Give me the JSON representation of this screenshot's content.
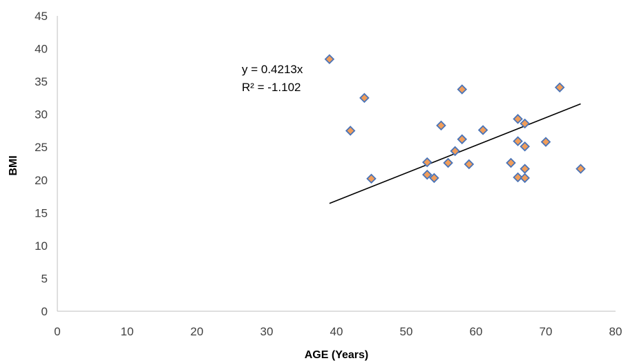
{
  "chart_data": {
    "type": "scatter",
    "xlabel": "AGE (Years)",
    "ylabel": "BMI",
    "xlim": [
      0,
      80
    ],
    "ylim": [
      0,
      45
    ],
    "x_ticks": [
      0,
      10,
      20,
      30,
      40,
      50,
      60,
      70,
      80
    ],
    "y_ticks": [
      0,
      5,
      10,
      15,
      20,
      25,
      30,
      35,
      40,
      45
    ],
    "grid": false,
    "legend": "none",
    "points": [
      {
        "x": 39,
        "y": 38.4
      },
      {
        "x": 42,
        "y": 27.5
      },
      {
        "x": 44,
        "y": 32.5
      },
      {
        "x": 45,
        "y": 20.2
      },
      {
        "x": 53,
        "y": 22.7
      },
      {
        "x": 53,
        "y": 20.8
      },
      {
        "x": 54,
        "y": 20.3
      },
      {
        "x": 55,
        "y": 28.3
      },
      {
        "x": 56,
        "y": 22.6
      },
      {
        "x": 57,
        "y": 24.4
      },
      {
        "x": 58,
        "y": 33.8
      },
      {
        "x": 58,
        "y": 26.2
      },
      {
        "x": 59,
        "y": 22.4
      },
      {
        "x": 61,
        "y": 27.6
      },
      {
        "x": 65,
        "y": 22.6
      },
      {
        "x": 66,
        "y": 29.3
      },
      {
        "x": 66,
        "y": 25.9
      },
      {
        "x": 66,
        "y": 20.4
      },
      {
        "x": 67,
        "y": 28.6
      },
      {
        "x": 67,
        "y": 25.1
      },
      {
        "x": 67,
        "y": 21.7
      },
      {
        "x": 67,
        "y": 20.3
      },
      {
        "x": 70,
        "y": 25.8
      },
      {
        "x": 72,
        "y": 34.1
      },
      {
        "x": 75,
        "y": 21.7
      }
    ],
    "trendline": {
      "x_start": 39,
      "x_end": 75,
      "slope": 0.4213,
      "equation": "y = 0.4213x",
      "r_squared": "R² = -1.102"
    },
    "colors": {
      "marker_fill": "#F09D5A",
      "marker_stroke": "#4A74B8",
      "axis": "#BFBFBF",
      "trendline": "#000000"
    }
  }
}
